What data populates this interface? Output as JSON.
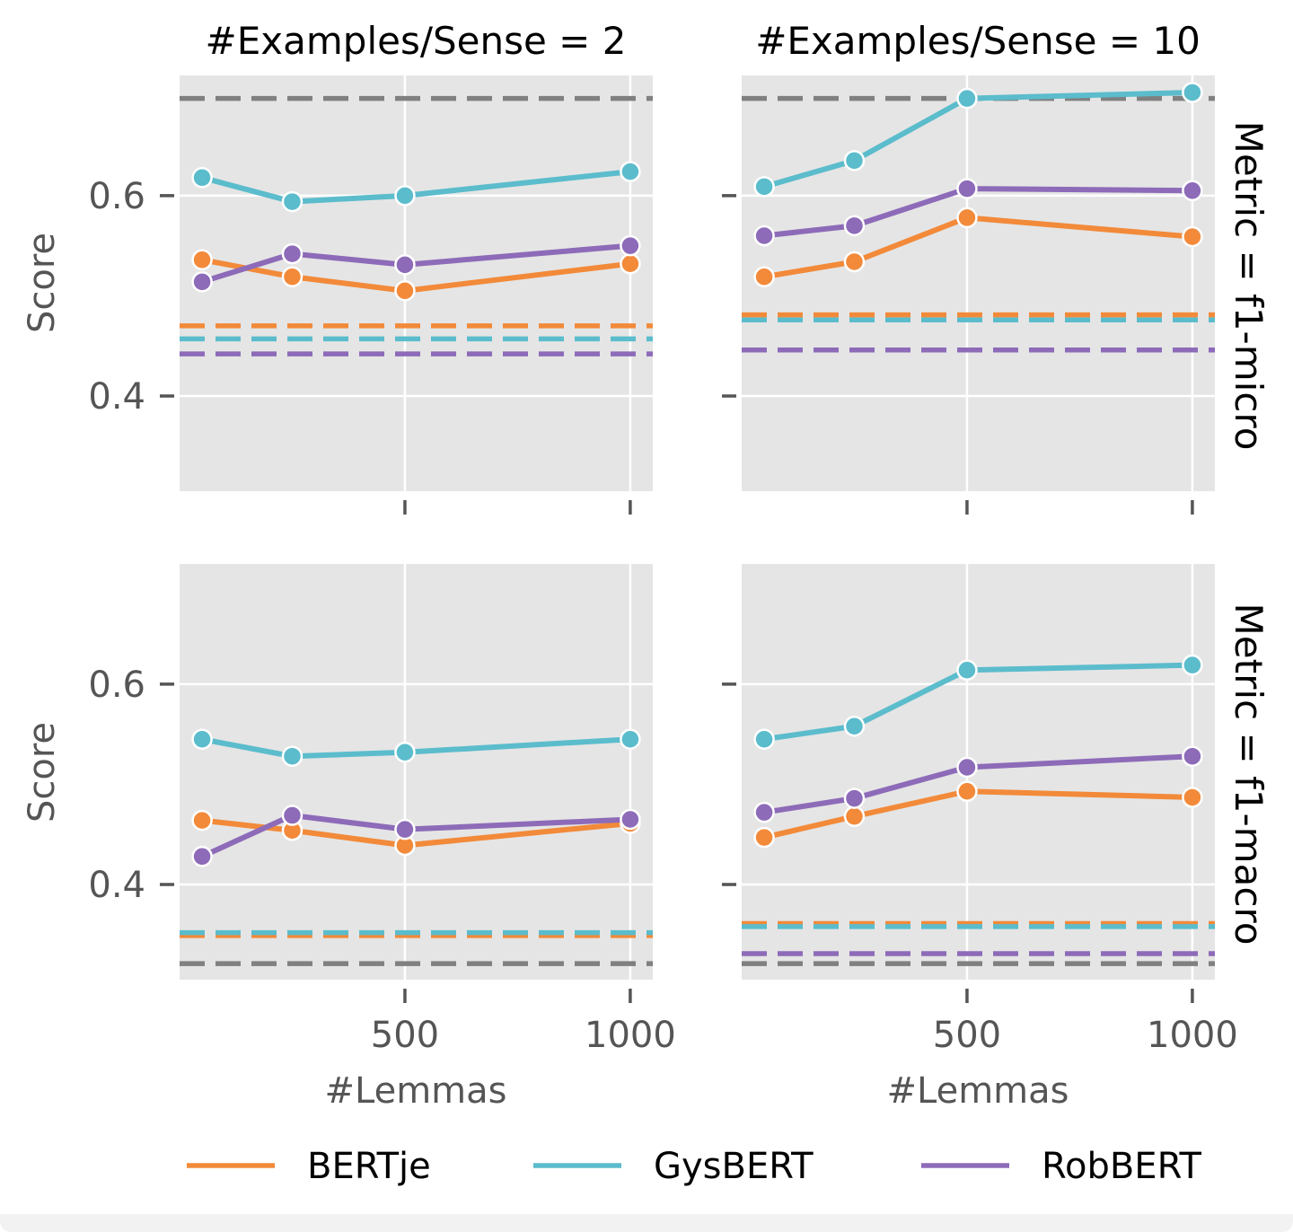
{
  "chart_data": {
    "type": "line",
    "layout": "facet-grid-2x2",
    "column_titles": [
      "#Examples/Sense = 2",
      "#Examples/Sense = 10"
    ],
    "row_titles": [
      "Metric = f1-micro",
      "Metric = f1-macro"
    ],
    "xlabel": "#Lemmas",
    "ylabel": "Score",
    "x_ticks": [
      500,
      1000
    ],
    "y_ticks": [
      0.4,
      0.6
    ],
    "xlim": [
      0,
      1050
    ],
    "ylim": [
      0.305,
      0.72
    ],
    "grid": true,
    "legend_position": "bottom",
    "legend": [
      "BERTje",
      "GysBERT",
      "RobBERT"
    ],
    "colors": {
      "BERTje": "#f28a3a",
      "GysBERT": "#5bbccc",
      "RobBERT": "#8d6bb8",
      "reference": "#808080",
      "panel_bg": "#e5e5e5",
      "grid": "#ffffff"
    },
    "x": [
      50,
      250,
      500,
      1000
    ],
    "panels": [
      {
        "row": 0,
        "col": 0,
        "series": [
          {
            "name": "BERTje",
            "values": [
              0.536,
              0.519,
              0.505,
              0.532
            ]
          },
          {
            "name": "GysBERT",
            "values": [
              0.618,
              0.594,
              0.6,
              0.624
            ]
          },
          {
            "name": "RobBERT",
            "values": [
              0.514,
              0.542,
              0.531,
              0.55
            ]
          }
        ],
        "reference_lines": [
          {
            "color": "reference",
            "value": 0.697
          },
          {
            "color": "BERTje",
            "value": 0.47
          },
          {
            "color": "GysBERT",
            "value": 0.457
          },
          {
            "color": "RobBERT",
            "value": 0.442
          }
        ]
      },
      {
        "row": 0,
        "col": 1,
        "series": [
          {
            "name": "BERTje",
            "values": [
              0.519,
              0.534,
              0.578,
              0.559
            ]
          },
          {
            "name": "GysBERT",
            "values": [
              0.609,
              0.635,
              0.697,
              0.703
            ]
          },
          {
            "name": "RobBERT",
            "values": [
              0.56,
              0.57,
              0.607,
              0.605
            ]
          }
        ],
        "reference_lines": [
          {
            "color": "reference",
            "value": 0.697
          },
          {
            "color": "BERTje",
            "value": 0.481
          },
          {
            "color": "GysBERT",
            "value": 0.476
          },
          {
            "color": "RobBERT",
            "value": 0.446
          }
        ]
      },
      {
        "row": 1,
        "col": 0,
        "series": [
          {
            "name": "BERTje",
            "values": [
              0.464,
              0.454,
              0.439,
              0.461
            ]
          },
          {
            "name": "GysBERT",
            "values": [
              0.545,
              0.528,
              0.532,
              0.545
            ]
          },
          {
            "name": "RobBERT",
            "values": [
              0.428,
              0.469,
              0.455,
              0.465
            ]
          }
        ],
        "reference_lines": [
          {
            "color": "BERTje",
            "value": 0.349
          },
          {
            "color": "GysBERT",
            "value": 0.352
          },
          {
            "color": "reference",
            "value": 0.321
          }
        ]
      },
      {
        "row": 1,
        "col": 1,
        "series": [
          {
            "name": "BERTje",
            "values": [
              0.447,
              0.468,
              0.493,
              0.487
            ]
          },
          {
            "name": "GysBERT",
            "values": [
              0.545,
              0.558,
              0.614,
              0.619
            ]
          },
          {
            "name": "RobBERT",
            "values": [
              0.472,
              0.486,
              0.517,
              0.528
            ]
          }
        ],
        "reference_lines": [
          {
            "color": "BERTje",
            "value": 0.361
          },
          {
            "color": "GysBERT",
            "value": 0.358
          },
          {
            "color": "RobBERT",
            "value": 0.331
          },
          {
            "color": "reference",
            "value": 0.321
          }
        ]
      }
    ]
  }
}
